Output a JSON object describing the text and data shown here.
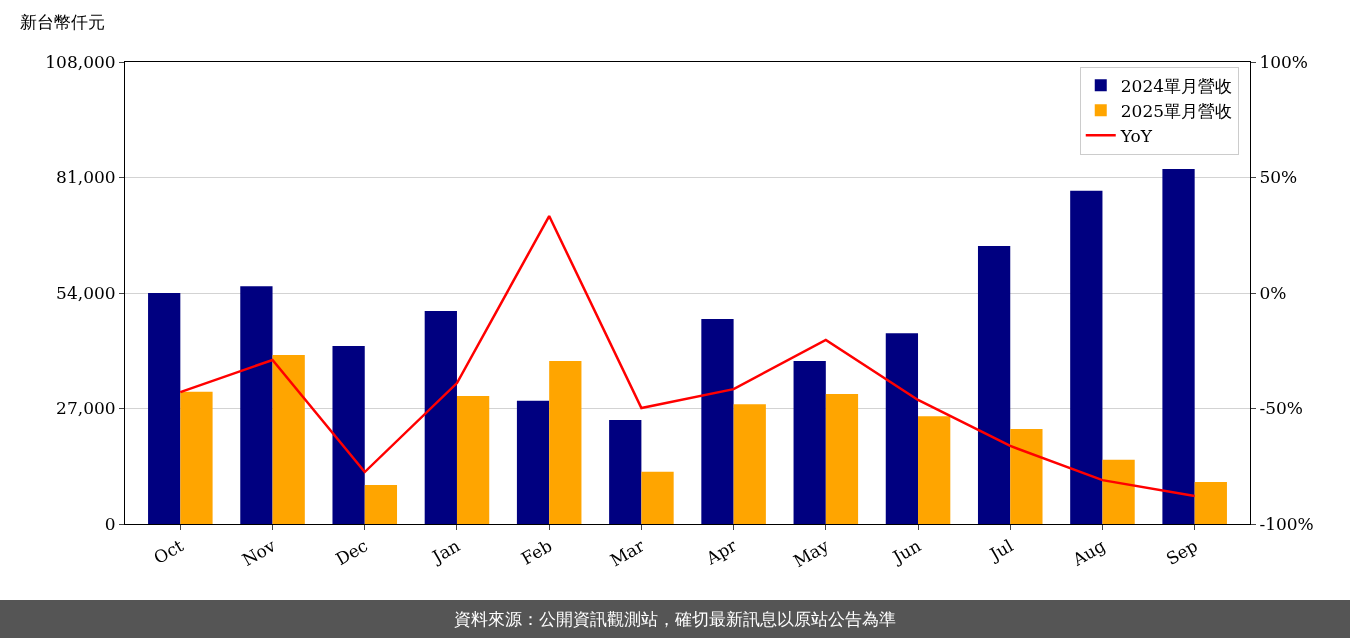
{
  "chart_data": {
    "type": "bar",
    "ylabel": "新台幣仟元",
    "categories": [
      "Oct",
      "Nov",
      "Dec",
      "Jan",
      "Feb",
      "Mar",
      "Apr",
      "May",
      "Jun",
      "Jul",
      "Aug",
      "Sep"
    ],
    "series": [
      {
        "name": "2024單月營收",
        "color": "#000080",
        "values": [
          54000,
          55600,
          41600,
          49800,
          28800,
          24300,
          47900,
          38100,
          44600,
          65000,
          77900,
          83000
        ]
      },
      {
        "name": "2025單月營收",
        "color": "#ffa500",
        "values": [
          30900,
          39500,
          9100,
          29900,
          38100,
          12200,
          28000,
          30400,
          25200,
          22200,
          15000,
          9800
        ]
      },
      {
        "name": "YoY",
        "type": "line",
        "axis": "y2",
        "color": "#ff0000",
        "values": [
          -42.9,
          -29,
          -77.5,
          -39,
          33.3,
          -49.8,
          -41.6,
          -20.3,
          -46.3,
          -66.2,
          -81,
          -87.9
        ]
      }
    ],
    "ylim": [
      0,
      108000
    ],
    "yticks": [
      0,
      {
        "value": 27000,
        "label": "27,000"
      },
      {
        "value": 54000,
        "label": "54,000"
      },
      {
        "value": 81000,
        "label": "81,000"
      },
      {
        "value": 108000,
        "label": "108,000"
      }
    ],
    "y2lim": [
      -100,
      100
    ],
    "y2ticks": [
      {
        "value": -100,
        "label": "-100%"
      },
      {
        "value": -50,
        "label": "-50%"
      },
      {
        "value": 0,
        "label": "0%"
      },
      {
        "value": 50,
        "label": "50%"
      },
      {
        "value": 100,
        "label": "100%"
      }
    ],
    "grid": "y",
    "legend": "top right",
    "marker": "none",
    "line_style": "solid",
    "annotations": [
      "資料來源：公開資訊觀測站，確切最新訊息以原站公告為準"
    ]
  }
}
